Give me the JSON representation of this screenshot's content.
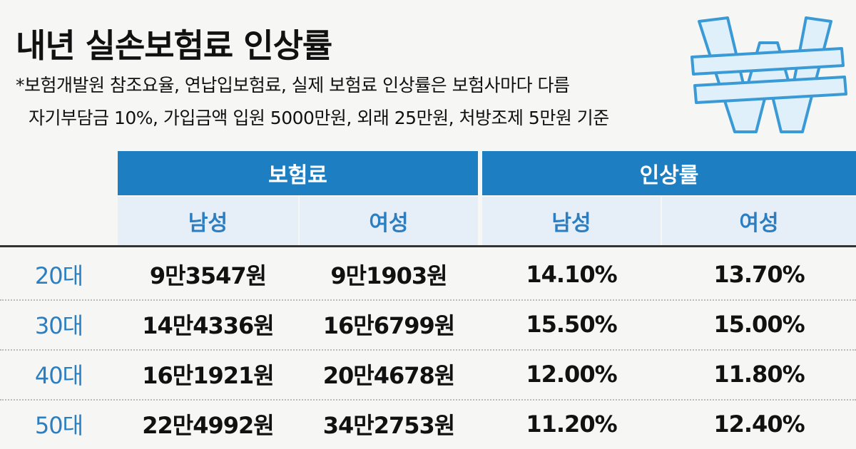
{
  "header": {
    "title": "내년 실손보험료 인상률",
    "notes": [
      "*보험개발원 참조요율, 연납입보험료, 실제 보험료 인상률은 보험사마다 다름",
      "자기부담금 10%, 가입금액 입원 5000만원, 외래 25만원, 처방조제 5만원 기준"
    ]
  },
  "table": {
    "group_headers": [
      "보험료",
      "인상률"
    ],
    "sub_headers": [
      "남성",
      "여성",
      "남성",
      "여성"
    ],
    "rows": [
      [
        "20대",
        "9만3547원",
        "9만1903원",
        "14.10%",
        "13.70%"
      ],
      [
        "30대",
        "14만4336원",
        "16만6799원",
        "15.50%",
        "15.00%"
      ],
      [
        "40대",
        "16만1921원",
        "20만4678원",
        "12.00%",
        "11.80%"
      ],
      [
        "50대",
        "22만4992원",
        "34만2753원",
        "11.20%",
        "12.40%"
      ]
    ]
  }
}
